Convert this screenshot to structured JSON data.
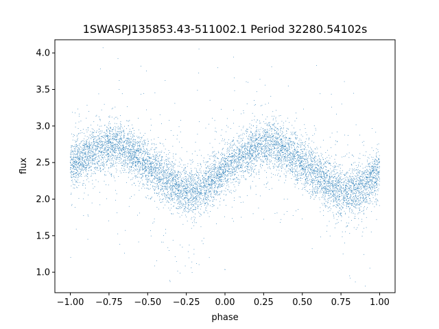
{
  "chart_data": {
    "type": "scatter",
    "title": "1SWASPJ135853.43-511002.1 Period 32280.54102s",
    "xlabel": "phase",
    "ylabel": "flux",
    "xlim": [
      -1.1,
      1.1
    ],
    "ylim": [
      0.72,
      4.18
    ],
    "x_ticks": [
      -1.0,
      -0.75,
      -0.5,
      -0.25,
      0.0,
      0.25,
      0.5,
      0.75,
      1.0
    ],
    "x_tick_labels": [
      "−1.00",
      "−0.75",
      "−0.50",
      "−0.25",
      "0.00",
      "0.25",
      "0.50",
      "0.75",
      "1.00"
    ],
    "y_ticks": [
      1.0,
      1.5,
      2.0,
      2.5,
      3.0,
      3.5,
      4.0
    ],
    "y_tick_labels": [
      "1.0",
      "1.5",
      "2.0",
      "2.5",
      "3.0",
      "3.5",
      "4.0"
    ],
    "grid": false,
    "point_color": "#1f77b4",
    "series": [
      {
        "x": [
          -1.0,
          -0.9,
          -0.8,
          -0.75,
          -0.7,
          -0.6,
          -0.5,
          -0.4,
          -0.3,
          -0.25,
          -0.2,
          -0.1,
          0.0,
          0.1,
          0.2,
          0.25,
          0.3,
          0.4,
          0.5,
          0.6,
          0.7,
          0.75,
          0.8,
          0.9,
          1.0
        ],
        "y": [
          2.45,
          2.58,
          2.7,
          2.72,
          2.75,
          2.64,
          2.45,
          2.3,
          2.15,
          2.1,
          2.08,
          2.22,
          2.42,
          2.58,
          2.7,
          2.73,
          2.75,
          2.66,
          2.5,
          2.33,
          2.16,
          2.1,
          2.08,
          2.18,
          2.4
        ]
      }
    ]
  }
}
